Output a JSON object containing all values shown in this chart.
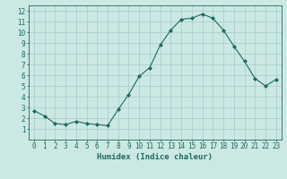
{
  "x": [
    0,
    1,
    2,
    3,
    4,
    5,
    6,
    7,
    8,
    9,
    10,
    11,
    12,
    13,
    14,
    15,
    16,
    17,
    18,
    19,
    20,
    21,
    22,
    23
  ],
  "y": [
    2.7,
    2.2,
    1.5,
    1.4,
    1.7,
    1.5,
    1.4,
    1.3,
    2.8,
    4.2,
    5.9,
    6.7,
    8.8,
    10.2,
    11.2,
    11.3,
    11.7,
    11.3,
    10.2,
    8.7,
    7.3,
    5.7,
    5.0,
    5.6
  ],
  "line_color": "#1a6b5a",
  "marker": "D",
  "marker_size": 2,
  "bg_color": "#cce8e4",
  "grid_color": "#aad0cb",
  "xlabel": "Humidex (Indice chaleur)",
  "xlim": [
    -0.5,
    23.5
  ],
  "ylim": [
    0,
    12.5
  ],
  "yticks": [
    1,
    2,
    3,
    4,
    5,
    6,
    7,
    8,
    9,
    10,
    11,
    12
  ],
  "xticks": [
    0,
    1,
    2,
    3,
    4,
    5,
    6,
    7,
    8,
    9,
    10,
    11,
    12,
    13,
    14,
    15,
    16,
    17,
    18,
    19,
    20,
    21,
    22,
    23
  ],
  "xlabel_fontsize": 6.5,
  "tick_fontsize": 5.5
}
